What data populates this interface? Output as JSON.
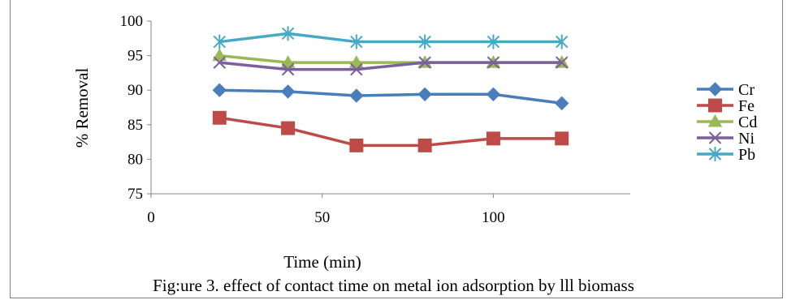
{
  "chart_data": {
    "type": "line",
    "title": "",
    "xlabel": "Time (min)",
    "ylabel": "% Removal",
    "xlim": [
      0,
      140
    ],
    "ylim": [
      75,
      100
    ],
    "xticks": [
      0,
      50,
      100
    ],
    "yticks": [
      75,
      80,
      85,
      90,
      95,
      100
    ],
    "grid": false,
    "legend": "right",
    "caption": "Fig:ure 3. effect of contact time on metal ion adsorption by lll biomass",
    "x": [
      20,
      40,
      60,
      80,
      100,
      120
    ],
    "series": [
      {
        "name": "Cr",
        "color": "#4a7ebb",
        "marker": "diamond",
        "values": [
          90,
          89.8,
          89.2,
          89.4,
          89.4,
          88.1
        ]
      },
      {
        "name": "Fe",
        "color": "#be4b48",
        "marker": "square",
        "values": [
          86,
          84.5,
          82,
          82,
          83,
          83
        ]
      },
      {
        "name": "Cd",
        "color": "#98b954",
        "marker": "triangle",
        "values": [
          95,
          94,
          94,
          94,
          94,
          94
        ]
      },
      {
        "name": "Ni",
        "color": "#7d5fa0",
        "marker": "x",
        "values": [
          94,
          93,
          93,
          94,
          94,
          94
        ]
      },
      {
        "name": "Pb",
        "color": "#46aac5",
        "marker": "star",
        "values": [
          97,
          98.2,
          97,
          97,
          97,
          97
        ]
      }
    ]
  }
}
